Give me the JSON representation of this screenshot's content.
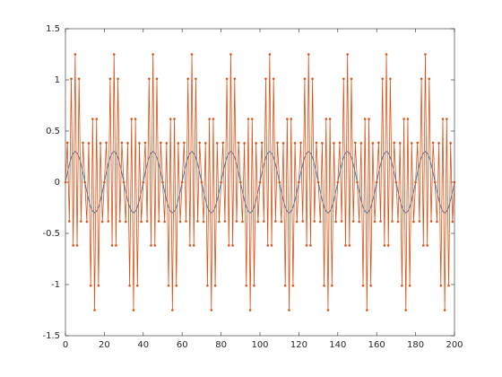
{
  "chart_data": {
    "type": "line",
    "x": [
      0,
      1,
      2,
      3,
      4,
      5,
      6,
      7,
      8,
      9,
      10,
      11,
      12,
      13,
      14,
      15,
      16,
      17,
      18,
      19,
      20,
      21,
      22,
      23,
      24,
      25,
      26,
      27,
      28,
      29,
      30,
      31,
      32,
      33,
      34,
      35,
      36,
      37,
      38,
      39,
      40,
      41,
      42,
      43,
      44,
      45,
      46,
      47,
      48,
      49,
      50,
      51,
      52,
      53,
      54,
      55,
      56,
      57,
      58,
      59,
      60,
      61,
      62,
      63,
      64,
      65,
      66,
      67,
      68,
      69,
      70,
      71,
      72,
      73,
      74,
      75,
      76,
      77,
      78,
      79,
      80,
      81,
      82,
      83,
      84,
      85,
      86,
      87,
      88,
      89,
      90,
      91,
      92,
      93,
      94,
      95,
      96,
      97,
      98,
      99,
      100,
      101,
      102,
      103,
      104,
      105,
      106,
      107,
      108,
      109,
      110,
      111,
      112,
      113,
      114,
      115,
      116,
      117,
      118,
      119,
      120,
      121,
      122,
      123,
      124,
      125,
      126,
      127,
      128,
      129,
      130,
      131,
      132,
      133,
      134,
      135,
      136,
      137,
      138,
      139,
      140,
      141,
      142,
      143,
      144,
      145,
      146,
      147,
      148,
      149,
      150,
      151,
      152,
      153,
      154,
      155,
      156,
      157,
      158,
      159,
      160,
      161,
      162,
      163,
      164,
      165,
      166,
      167,
      168,
      169,
      170,
      171,
      172,
      173,
      174,
      175,
      176,
      177,
      178,
      179,
      180,
      181,
      182,
      183,
      184,
      185,
      186,
      187,
      188,
      189,
      190,
      191,
      192,
      193,
      194,
      195,
      196,
      197,
      198,
      199,
      200
    ],
    "series": [
      {
        "color": "#0072bd",
        "markers": false,
        "values": [
          0,
          0.093,
          0.176,
          0.243,
          0.285,
          0.3,
          0.285,
          0.243,
          0.176,
          0.093,
          0,
          -0.093,
          -0.176,
          -0.243,
          -0.285,
          -0.3,
          -0.285,
          -0.243,
          -0.176,
          -0.093,
          0,
          0.093,
          0.176,
          0.243,
          0.285,
          0.3,
          0.285,
          0.243,
          0.176,
          0.093,
          0,
          -0.093,
          -0.176,
          -0.243,
          -0.285,
          -0.3,
          -0.285,
          -0.243,
          -0.176,
          -0.093,
          0,
          0.093,
          0.176,
          0.243,
          0.285,
          0.3,
          0.285,
          0.243,
          0.176,
          0.093,
          0,
          -0.093,
          -0.176,
          -0.243,
          -0.285,
          -0.3,
          -0.285,
          -0.243,
          -0.176,
          -0.093,
          0,
          0.093,
          0.176,
          0.243,
          0.285,
          0.3,
          0.285,
          0.243,
          0.176,
          0.093,
          0,
          -0.093,
          -0.176,
          -0.243,
          -0.285,
          -0.3,
          -0.285,
          -0.243,
          -0.176,
          -0.093,
          0,
          0.093,
          0.176,
          0.243,
          0.285,
          0.3,
          0.285,
          0.243,
          0.176,
          0.093,
          0,
          -0.093,
          -0.176,
          -0.243,
          -0.285,
          -0.3,
          -0.285,
          -0.243,
          -0.176,
          -0.093,
          0,
          0.093,
          0.176,
          0.243,
          0.285,
          0.3,
          0.285,
          0.243,
          0.176,
          0.093,
          0,
          -0.093,
          -0.176,
          -0.243,
          -0.285,
          -0.3,
          -0.285,
          -0.243,
          -0.176,
          -0.093,
          0,
          0.093,
          0.176,
          0.243,
          0.285,
          0.3,
          0.285,
          0.243,
          0.176,
          0.093,
          0,
          -0.093,
          -0.176,
          -0.243,
          -0.285,
          -0.3,
          -0.285,
          -0.243,
          -0.176,
          -0.093,
          0,
          0.093,
          0.176,
          0.243,
          0.285,
          0.3,
          0.285,
          0.243,
          0.176,
          0.093,
          0,
          -0.093,
          -0.176,
          -0.243,
          -0.285,
          -0.3,
          -0.285,
          -0.243,
          -0.176,
          -0.093,
          0,
          0.093,
          0.176,
          0.243,
          0.285,
          0.3,
          0.285,
          0.243,
          0.176,
          0.093,
          0,
          -0.093,
          -0.176,
          -0.243,
          -0.285,
          -0.3,
          -0.285,
          -0.243,
          -0.176,
          -0.093,
          0,
          0.093,
          0.176,
          0.243,
          0.285,
          0.3,
          0.285,
          0.243,
          0.176,
          0.093,
          0,
          -0.093,
          -0.176,
          -0.243,
          -0.285,
          -0.3,
          -0.285,
          -0.243,
          -0.176,
          -0.093,
          0
        ]
      },
      {
        "color": "#d95319",
        "markers": true,
        "values": [
          0,
          0.386,
          -0.382,
          1.011,
          -0.618,
          1.25,
          -0.618,
          1.011,
          -0.382,
          0.386,
          0,
          -0.386,
          0.382,
          -1.011,
          0.618,
          -1.25,
          0.618,
          -1.011,
          0.382,
          -0.386,
          0,
          0.386,
          -0.382,
          1.011,
          -0.618,
          1.25,
          -0.618,
          1.011,
          -0.382,
          0.386,
          0,
          -0.386,
          0.382,
          -1.011,
          0.618,
          -1.25,
          0.618,
          -1.011,
          0.382,
          -0.386,
          0,
          0.386,
          -0.382,
          1.011,
          -0.618,
          1.25,
          -0.618,
          1.011,
          -0.382,
          0.386,
          0,
          -0.386,
          0.382,
          -1.011,
          0.618,
          -1.25,
          0.618,
          -1.011,
          0.382,
          -0.386,
          0,
          0.386,
          -0.382,
          1.011,
          -0.618,
          1.25,
          -0.618,
          1.011,
          -0.382,
          0.386,
          0,
          -0.386,
          0.382,
          -1.011,
          0.618,
          -1.25,
          0.618,
          -1.011,
          0.382,
          -0.386,
          0,
          0.386,
          -0.382,
          1.011,
          -0.618,
          1.25,
          -0.618,
          1.011,
          -0.382,
          0.386,
          0,
          -0.386,
          0.382,
          -1.011,
          0.618,
          -1.25,
          0.618,
          -1.011,
          0.382,
          -0.386,
          0,
          0.386,
          -0.382,
          1.011,
          -0.618,
          1.25,
          -0.618,
          1.011,
          -0.382,
          0.386,
          0,
          -0.386,
          0.382,
          -1.011,
          0.618,
          -1.25,
          0.618,
          -1.011,
          0.382,
          -0.386,
          0,
          0.386,
          -0.382,
          1.011,
          -0.618,
          1.25,
          -0.618,
          1.011,
          -0.382,
          0.386,
          0,
          -0.386,
          0.382,
          -1.011,
          0.618,
          -1.25,
          0.618,
          -1.011,
          0.382,
          -0.386,
          0,
          0.386,
          -0.382,
          1.011,
          -0.618,
          1.25,
          -0.618,
          1.011,
          -0.382,
          0.386,
          0,
          -0.386,
          0.382,
          -1.011,
          0.618,
          -1.25,
          0.618,
          -1.011,
          0.382,
          -0.386,
          0,
          0.386,
          -0.382,
          1.011,
          -0.618,
          1.25,
          -0.618,
          1.011,
          -0.382,
          0.386,
          0,
          -0.386,
          0.382,
          -1.011,
          0.618,
          -1.25,
          0.618,
          -1.011,
          0.382,
          -0.386,
          0,
          0.386,
          -0.382,
          1.011,
          -0.618,
          1.25,
          -0.618,
          1.011,
          -0.382,
          0.386,
          0,
          -0.386,
          0.382,
          -1.011,
          0.618,
          -1.25,
          0.618,
          -1.011,
          0.382,
          -0.386,
          0
        ]
      }
    ],
    "xlim": [
      0,
      200
    ],
    "xticks": [
      0,
      20,
      40,
      60,
      80,
      100,
      120,
      140,
      160,
      180,
      200
    ],
    "ylim": [
      -1.5,
      1.5
    ],
    "yticks": [
      -1.5,
      -1,
      -0.5,
      0,
      0.5,
      1,
      1.5
    ],
    "grid": false
  }
}
